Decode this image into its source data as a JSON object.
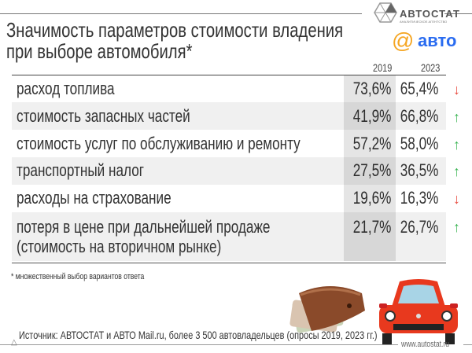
{
  "header": {
    "title_line1": "Значимость параметров стоимости владения",
    "title_line2": "при выборе автомобиля*",
    "logo_autostat": "АВТОСТАТ",
    "logo_autostat_sub": "АНАЛИТИЧЕСКОЕ АГЕНТСТВО",
    "logo_avto": "авто"
  },
  "table": {
    "columns": [
      "2019",
      "2023"
    ],
    "rows": [
      {
        "label": "расход топлива",
        "v2019": "73,6%",
        "v2023": "65,4%",
        "trend": "down"
      },
      {
        "label": "стоимость запасных частей",
        "v2019": "41,9%",
        "v2023": "66,8%",
        "trend": "up"
      },
      {
        "label": "стоимость услуг по обслуживанию и ремонту",
        "v2019": "57,2%",
        "v2023": "58,0%",
        "trend": "up"
      },
      {
        "label": "транспортный налог",
        "v2019": "27,5%",
        "v2023": "36,5%",
        "trend": "up"
      },
      {
        "label": "расходы на страхование",
        "v2019": "19,6%",
        "v2023": "16,3%",
        "trend": "down"
      },
      {
        "label": "потеря в цене при дальнейшей продаже",
        "label2": "(стоимость на вторичном рынке)",
        "v2019": "21,7%",
        "v2023": "26,7%",
        "trend": "up"
      }
    ],
    "arrows": {
      "up": "↑",
      "down": "↓"
    },
    "colors": {
      "up": "#3cb554",
      "down": "#e8483c"
    }
  },
  "footnote": "* множественный выбор вариантов ответа",
  "source": "Источник: АВТОСТАТ и АВТО Mail.ru, более 3 500 автовладельцев (опросы 2019, 2023 гг.)",
  "website": "www.autostat.ru",
  "colors": {
    "avto_blue": "#2a6cf0",
    "avto_orange": "#f5a623",
    "car_red": "#e8391e"
  }
}
